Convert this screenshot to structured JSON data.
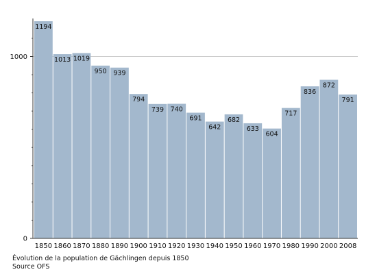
{
  "caption": {
    "title": "Évolution de la population de Gächlingen depuis 1850",
    "source": "Source OFS"
  },
  "chart_data": {
    "type": "bar",
    "categories": [
      "1850",
      "1860",
      "1870",
      "1880",
      "1890",
      "1900",
      "1910",
      "1920",
      "1930",
      "1940",
      "1950",
      "1960",
      "1970",
      "1980",
      "1990",
      "2000",
      "2008"
    ],
    "values": [
      1194,
      1013,
      1019,
      950,
      939,
      794,
      739,
      740,
      691,
      642,
      682,
      633,
      604,
      717,
      836,
      872,
      791
    ],
    "title": "",
    "xlabel": "",
    "ylabel": "",
    "ylim": [
      0,
      1194
    ],
    "yticks": [
      "0",
      "1000"
    ],
    "grid": true,
    "bar_color": "#a3b8cd",
    "gridline_color": "#cccccc"
  }
}
